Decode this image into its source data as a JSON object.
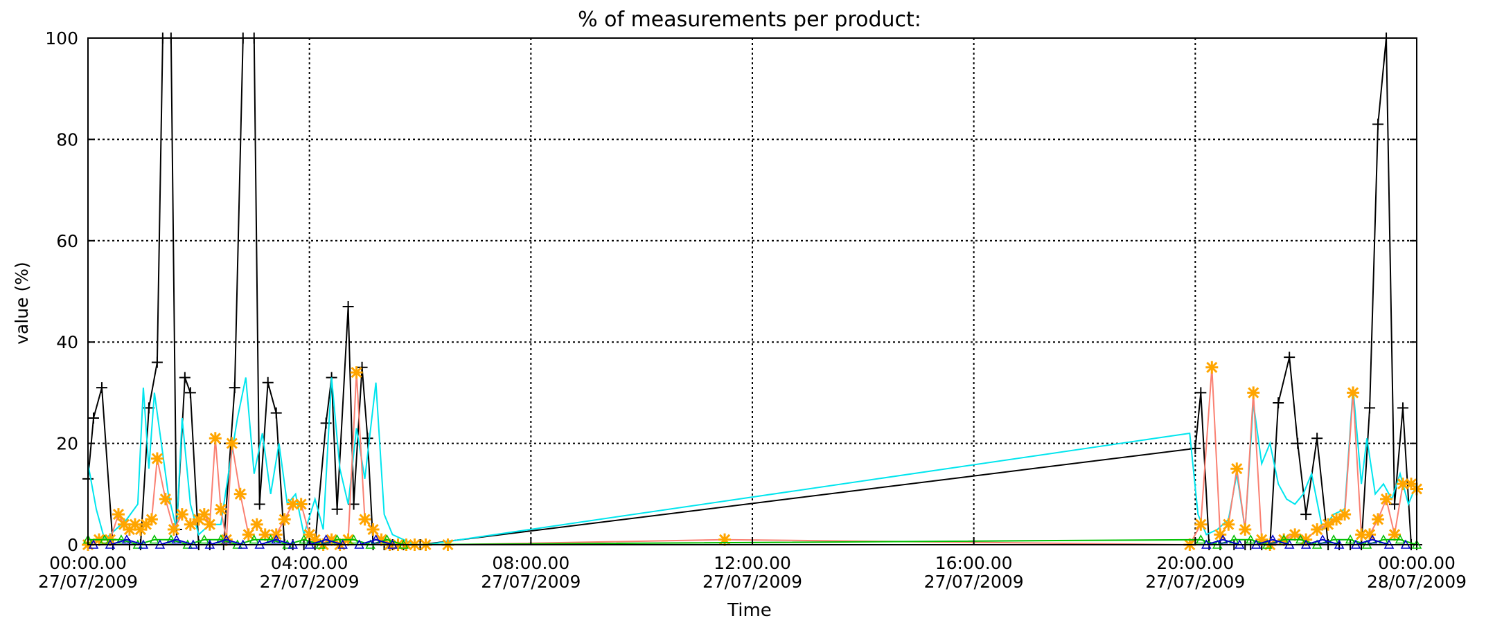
{
  "chart_data": {
    "type": "line",
    "title": "% of measurements per product:",
    "xlabel": "Time",
    "ylabel": "value (%)",
    "ylim": [
      0,
      100
    ],
    "xlim_hours": [
      0,
      24
    ],
    "grid": true,
    "y_ticks": [
      "0",
      "20",
      "40",
      "60",
      "80",
      "100"
    ],
    "x_ticks": [
      {
        "time": "00:00.00",
        "date": "27/07/2009"
      },
      {
        "time": "04:00.00",
        "date": "27/07/2009"
      },
      {
        "time": "08:00.00",
        "date": "27/07/2009"
      },
      {
        "time": "12:00.00",
        "date": "27/07/2009"
      },
      {
        "time": "16:00.00",
        "date": "27/07/2009"
      },
      {
        "time": "20:00.00",
        "date": "27/07/2009"
      },
      {
        "time": "00:00.00",
        "date": "28/07/2009"
      }
    ],
    "series": [
      {
        "color": "#000000",
        "marker": "plus",
        "x": [
          0,
          0.1,
          0.25,
          0.45,
          0.75,
          0.95,
          1.1,
          1.25,
          1.35,
          1.5,
          1.6,
          1.75,
          1.85,
          2.0,
          2.2,
          2.45,
          2.65,
          2.8,
          3.0,
          3.1,
          3.25,
          3.4,
          3.55,
          3.7,
          3.9,
          4.1,
          4.3,
          4.4,
          4.5,
          4.7,
          4.8,
          4.95,
          5.05,
          5.15,
          5.35,
          5.5,
          5.7,
          6.0,
          20.0,
          20.1,
          20.25,
          20.45,
          20.7,
          20.9,
          21.0,
          21.2,
          21.35,
          21.5,
          21.7,
          21.85,
          22.0,
          22.2,
          22.4,
          22.6,
          22.8,
          23.0,
          23.15,
          23.3,
          23.45,
          23.6,
          23.75,
          23.9,
          24.0
        ],
        "y": [
          13,
          25,
          31,
          0,
          0,
          0,
          27,
          36,
          100,
          100,
          3,
          33,
          30,
          0,
          0,
          0,
          31,
          100,
          100,
          8,
          32,
          26,
          0,
          0,
          0,
          0,
          24,
          33,
          7,
          47,
          8,
          35,
          21,
          0,
          0,
          0,
          0,
          0,
          19,
          30,
          0,
          0,
          0,
          0,
          0,
          0,
          0,
          28,
          37,
          20,
          6,
          21,
          0,
          0,
          0,
          0,
          27,
          83,
          100,
          8,
          27,
          0,
          0
        ]
      },
      {
        "color": "#00e5ee",
        "marker": "none",
        "x": [
          0,
          0.15,
          0.3,
          0.5,
          0.7,
          0.9,
          1.0,
          1.1,
          1.2,
          1.3,
          1.45,
          1.6,
          1.7,
          1.85,
          2.0,
          2.2,
          2.4,
          2.55,
          2.7,
          2.85,
          3.0,
          3.15,
          3.3,
          3.45,
          3.6,
          3.75,
          3.9,
          4.1,
          4.25,
          4.4,
          4.55,
          4.7,
          4.85,
          5.0,
          5.2,
          5.35,
          5.5,
          5.7,
          5.9,
          6.1,
          19.9,
          20.05,
          20.2,
          20.4,
          20.6,
          20.75,
          20.9,
          21.05,
          21.2,
          21.35,
          21.5,
          21.65,
          21.8,
          21.95,
          22.1,
          22.3,
          22.5,
          22.7,
          22.85,
          23.0,
          23.1,
          23.25,
          23.4,
          23.55,
          23.7,
          23.85,
          24.0
        ],
        "y": [
          16,
          7,
          1,
          3,
          5,
          8,
          31,
          15,
          30,
          22,
          10,
          3,
          25,
          8,
          2,
          4,
          4,
          15,
          25,
          33,
          14,
          22,
          10,
          20,
          8,
          10,
          2,
          9,
          3,
          33,
          15,
          8,
          23,
          13,
          32,
          6,
          2,
          1,
          0,
          0,
          22,
          6,
          2,
          3,
          5,
          14,
          3,
          28,
          16,
          20,
          12,
          9,
          8,
          10,
          14,
          3,
          6,
          7,
          31,
          12,
          21,
          10,
          12,
          9,
          14,
          8,
          12
        ]
      },
      {
        "color": "#fa8072",
        "marker": "asterisk",
        "x": [
          0,
          0.2,
          0.4,
          0.55,
          0.65,
          0.75,
          0.85,
          0.95,
          1.05,
          1.15,
          1.25,
          1.4,
          1.55,
          1.7,
          1.85,
          2.0,
          2.1,
          2.2,
          2.3,
          2.4,
          2.5,
          2.6,
          2.75,
          2.9,
          3.05,
          3.2,
          3.4,
          3.55,
          3.7,
          3.85,
          4.0,
          4.1,
          4.25,
          4.4,
          4.55,
          4.7,
          4.85,
          5.0,
          5.15,
          5.3,
          5.45,
          5.6,
          5.75,
          5.9,
          6.1,
          6.5,
          11.5,
          19.9,
          20.1,
          20.3,
          20.45,
          20.6,
          20.75,
          20.9,
          21.05,
          21.2,
          21.35,
          21.6,
          21.8,
          22.0,
          22.2,
          22.4,
          22.55,
          22.7,
          22.85,
          23.0,
          23.15,
          23.3,
          23.45,
          23.6,
          23.75,
          23.9,
          24.0
        ],
        "y": [
          0,
          1,
          1,
          6,
          4,
          3,
          4,
          3,
          4,
          5,
          17,
          9,
          3,
          6,
          4,
          5,
          6,
          4,
          21,
          7,
          1,
          20,
          10,
          2,
          4,
          2,
          2,
          5,
          8,
          8,
          2,
          1,
          0,
          1,
          0,
          1,
          34,
          5,
          3,
          1,
          0,
          0,
          0,
          0,
          0,
          0,
          1,
          0,
          4,
          35,
          2,
          4,
          15,
          3,
          30,
          1,
          0,
          1,
          2,
          1,
          3,
          4,
          5,
          6,
          30,
          2,
          2,
          5,
          9,
          2,
          12,
          12,
          11
        ]
      },
      {
        "color": "#9932cc",
        "marker": "none",
        "x": [
          0,
          6.0,
          8.0,
          12.0,
          16.0,
          20.0,
          24.0
        ],
        "y": [
          0,
          0,
          0,
          0,
          0,
          0,
          0
        ]
      },
      {
        "color": "#00c000",
        "marker": "triangle",
        "x": [
          0,
          0.3,
          0.6,
          0.9,
          1.2,
          1.5,
          1.8,
          2.1,
          2.4,
          2.7,
          3.0,
          3.3,
          3.6,
          3.9,
          4.2,
          4.5,
          4.8,
          5.1,
          5.4,
          5.7,
          20.1,
          20.4,
          20.7,
          21.0,
          21.3,
          21.6,
          21.9,
          22.2,
          22.5,
          22.8,
          23.1,
          23.4,
          23.7,
          24.0
        ],
        "y": [
          1,
          1,
          1,
          0,
          1,
          1,
          0,
          1,
          1,
          0,
          1,
          1,
          0,
          1,
          0,
          1,
          1,
          0,
          1,
          0,
          1,
          0,
          1,
          1,
          0,
          1,
          1,
          0,
          1,
          1,
          0,
          1,
          1,
          0
        ]
      },
      {
        "color": "#0000cd",
        "marker": "triangle",
        "x": [
          0.1,
          0.4,
          0.7,
          1.0,
          1.3,
          1.6,
          1.9,
          2.2,
          2.5,
          2.8,
          3.1,
          3.4,
          3.7,
          4.0,
          4.3,
          4.6,
          4.9,
          5.2,
          5.5,
          20.2,
          20.5,
          20.8,
          21.1,
          21.4,
          21.7,
          22.0,
          22.3,
          22.6,
          22.9,
          23.2,
          23.5,
          23.8
        ],
        "y": [
          0,
          0,
          1,
          0,
          0,
          1,
          0,
          0,
          1,
          0,
          0,
          1,
          0,
          0,
          1,
          0,
          0,
          1,
          0,
          0,
          1,
          0,
          0,
          1,
          0,
          0,
          1,
          0,
          0,
          1,
          0,
          0
        ]
      }
    ]
  }
}
